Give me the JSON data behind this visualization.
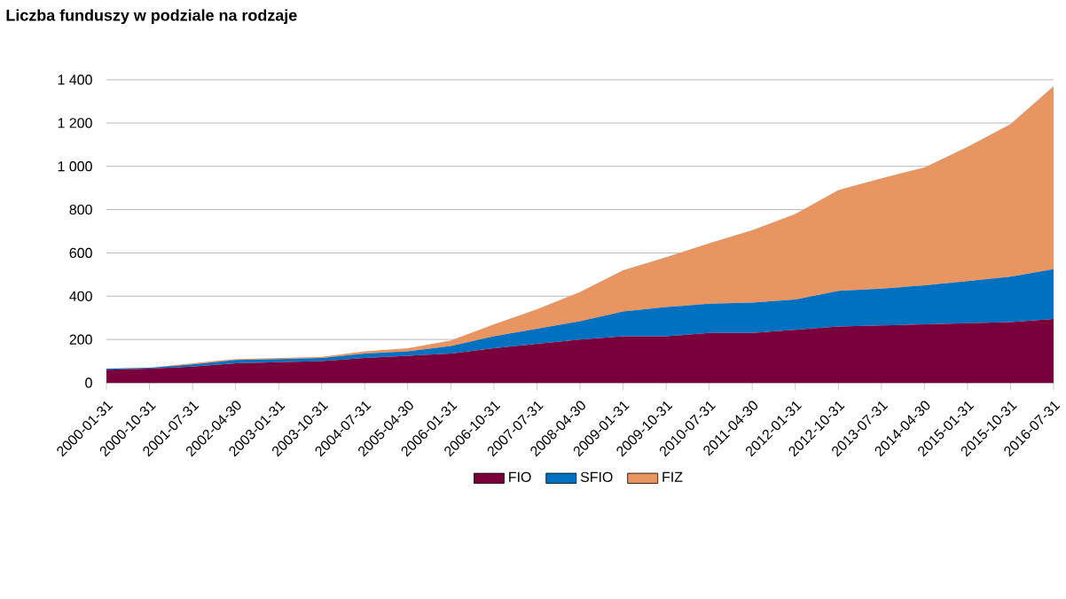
{
  "chart_data": {
    "type": "area",
    "title": "Liczba funduszy w podziale na rodzaje",
    "stacked": true,
    "categories": [
      "2000-01-31",
      "2000-10-31",
      "2001-07-31",
      "2002-04-30",
      "2003-01-31",
      "2003-10-31",
      "2004-07-31",
      "2005-04-30",
      "2006-01-31",
      "2006-10-31",
      "2007-07-31",
      "2008-04-30",
      "2009-01-31",
      "2009-10-31",
      "2010-07-31",
      "2011-04-30",
      "2012-01-31",
      "2012-10-31",
      "2013-07-31",
      "2014-04-30",
      "2015-01-31",
      "2015-10-31",
      "2016-07-31"
    ],
    "series": [
      {
        "name": "FIO",
        "color": "#7a003c",
        "values": [
          60,
          65,
          75,
          90,
          95,
          100,
          115,
          125,
          135,
          160,
          180,
          200,
          215,
          215,
          230,
          230,
          245,
          260,
          265,
          270,
          275,
          280,
          295
        ]
      },
      {
        "name": "SFIO",
        "color": "#0070c0",
        "values": [
          5,
          5,
          10,
          15,
          15,
          15,
          20,
          20,
          35,
          55,
          70,
          85,
          115,
          135,
          135,
          140,
          140,
          165,
          170,
          180,
          195,
          210,
          230
        ]
      },
      {
        "name": "FIZ",
        "color": "#e99562",
        "values": [
          0,
          0,
          5,
          5,
          5,
          5,
          10,
          15,
          25,
          55,
          90,
          135,
          190,
          230,
          280,
          335,
          395,
          465,
          510,
          545,
          620,
          705,
          845
        ]
      }
    ],
    "ylim": [
      0,
      1400
    ],
    "yticks": [
      0,
      200,
      400,
      600,
      800,
      {
        "value": 1000,
        "label": "1 000"
      },
      {
        "value": 1200,
        "label": "1 200"
      },
      {
        "value": 1400,
        "label": "1 400"
      }
    ],
    "grid": "y",
    "legend": "bottom"
  }
}
